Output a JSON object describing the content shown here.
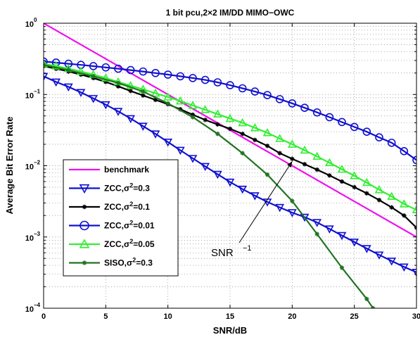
{
  "chart_data": {
    "type": "line",
    "title": "1 bit pcu,2×2 IM/DD MIMO−OWC",
    "xlabel": "SNR/dB",
    "ylabel": "Average Bit Error Rate",
    "xlim": [
      0,
      30
    ],
    "ylim": [
      0.0001,
      1
    ],
    "yscale": "log",
    "grid": true,
    "x_ticks": [
      0,
      5,
      10,
      15,
      20,
      25,
      30
    ],
    "x_tick_labels": [
      "0",
      "5",
      "10",
      "15",
      "20",
      "25",
      "30"
    ],
    "y_ticks": [
      0.0001,
      0.001,
      0.01,
      0.1,
      1
    ],
    "y_tick_bases": [
      "10",
      "10",
      "10",
      "10",
      "10"
    ],
    "y_tick_exps": [
      "−4",
      "−3",
      "−2",
      "−1",
      "0"
    ],
    "legend_position": "bottom-left",
    "annotation": {
      "text": "SNR",
      "sup": "−1",
      "arrow_to": [
        20,
        0.0115
      ]
    },
    "series": [
      {
        "name": "benchmark",
        "color": "#ee11ee",
        "marker": "none",
        "x": [
          0,
          30
        ],
        "y": [
          1.0,
          0.001
        ]
      },
      {
        "name": "ZCC,σ²=0.3",
        "name_parts": [
          "ZCC,σ",
          "2",
          "=0.3"
        ],
        "color": "#1010d0",
        "marker": "triangle-down",
        "x": [
          0,
          1,
          2,
          3,
          4,
          5,
          6,
          7,
          8,
          9,
          10,
          11,
          12,
          13,
          14,
          15,
          16,
          17,
          18,
          19,
          20,
          21,
          22,
          23,
          24,
          25,
          26,
          27,
          28,
          29,
          30
        ],
        "y": [
          0.18,
          0.15,
          0.128,
          0.107,
          0.088,
          0.072,
          0.058,
          0.046,
          0.036,
          0.028,
          0.0215,
          0.0165,
          0.0127,
          0.0098,
          0.0076,
          0.0059,
          0.0047,
          0.0038,
          0.0031,
          0.0026,
          0.0022,
          0.0019,
          0.0016,
          0.0013,
          0.00105,
          0.00085,
          0.00069,
          0.00056,
          0.00046,
          0.00038,
          0.00032
        ]
      },
      {
        "name": "ZCC,σ²=0.1",
        "name_parts": [
          "ZCC,σ",
          "2",
          "=0.1"
        ],
        "color": "#000000",
        "marker": "star",
        "x": [
          0,
          1,
          2,
          3,
          4,
          5,
          6,
          7,
          8,
          9,
          10,
          11,
          12,
          13,
          14,
          15,
          16,
          17,
          18,
          19,
          20,
          21,
          22,
          23,
          24,
          25,
          26,
          27,
          28,
          29,
          30
        ],
        "y": [
          0.25,
          0.23,
          0.21,
          0.19,
          0.17,
          0.15,
          0.13,
          0.112,
          0.097,
          0.084,
          0.073,
          0.062,
          0.052,
          0.044,
          0.038,
          0.033,
          0.028,
          0.023,
          0.019,
          0.015,
          0.0125,
          0.0105,
          0.0088,
          0.0073,
          0.006,
          0.005,
          0.0041,
          0.0033,
          0.0026,
          0.002,
          0.00135
        ]
      },
      {
        "name": "ZCC,σ²=0.01",
        "name_parts": [
          "ZCC,σ",
          "2",
          "=0.01"
        ],
        "color": "#1010d0",
        "marker": "circle",
        "x": [
          0,
          1,
          2,
          3,
          4,
          5,
          6,
          7,
          8,
          9,
          10,
          11,
          12,
          13,
          14,
          15,
          16,
          17,
          18,
          19,
          20,
          21,
          22,
          23,
          24,
          25,
          26,
          27,
          28,
          29,
          30
        ],
        "y": [
          0.29,
          0.28,
          0.27,
          0.26,
          0.25,
          0.24,
          0.23,
          0.22,
          0.21,
          0.2,
          0.19,
          0.18,
          0.17,
          0.16,
          0.148,
          0.135,
          0.122,
          0.11,
          0.098,
          0.086,
          0.075,
          0.065,
          0.056,
          0.048,
          0.041,
          0.035,
          0.03,
          0.025,
          0.021,
          0.016,
          0.012
        ]
      },
      {
        "name": "ZCC,σ²=0.05",
        "name_parts": [
          "ZCC,σ",
          "2",
          "=0.05"
        ],
        "color": "#33ee33",
        "marker": "triangle-up",
        "x": [
          0,
          1,
          2,
          3,
          4,
          5,
          6,
          7,
          8,
          9,
          10,
          11,
          12,
          13,
          14,
          15,
          16,
          17,
          18,
          19,
          20,
          21,
          22,
          23,
          24,
          25,
          26,
          27,
          28,
          29,
          30
        ],
        "y": [
          0.27,
          0.25,
          0.23,
          0.21,
          0.19,
          0.17,
          0.15,
          0.133,
          0.118,
          0.104,
          0.092,
          0.081,
          0.07,
          0.061,
          0.053,
          0.046,
          0.04,
          0.034,
          0.029,
          0.024,
          0.02,
          0.0165,
          0.0135,
          0.011,
          0.0089,
          0.0072,
          0.0058,
          0.0046,
          0.0037,
          0.0029,
          0.0024
        ]
      },
      {
        "name": "SISO,σ²=0.3",
        "name_parts": [
          "SISO,σ",
          "2",
          "=0.3"
        ],
        "color": "#217321",
        "marker": "star",
        "x": [
          0,
          2,
          4,
          6,
          8,
          10,
          12,
          14,
          16,
          18,
          20,
          22,
          24,
          26,
          26.5
        ],
        "y": [
          0.26,
          0.22,
          0.18,
          0.145,
          0.11,
          0.075,
          0.048,
          0.028,
          0.015,
          0.0075,
          0.0032,
          0.0011,
          0.00037,
          0.000135,
          0.0001
        ]
      }
    ]
  }
}
